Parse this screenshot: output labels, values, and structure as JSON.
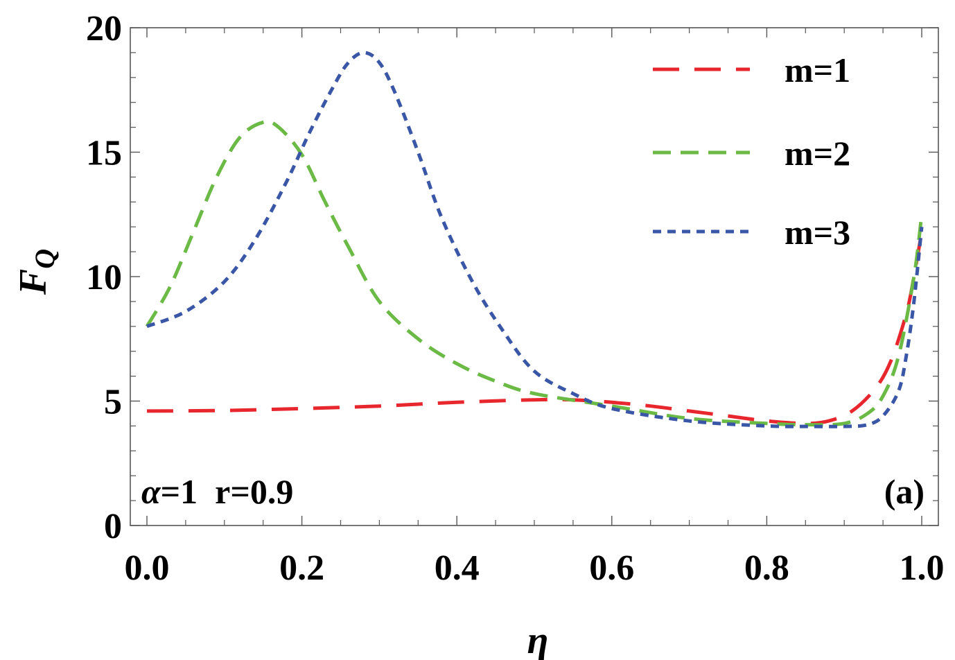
{
  "chart_data": {
    "type": "line",
    "xlabel": "η",
    "ylabel_main": "F",
    "ylabel_sub": "Q",
    "xlim": [
      0,
      1
    ],
    "ylim": [
      0,
      20
    ],
    "xticks": [
      {
        "value": 0.0,
        "label": "0.0"
      },
      {
        "value": 0.2,
        "label": "0.2"
      },
      {
        "value": 0.4,
        "label": "0.4"
      },
      {
        "value": 0.6,
        "label": "0.6"
      },
      {
        "value": 0.8,
        "label": "0.8"
      },
      {
        "value": 1.0,
        "label": "1.0"
      }
    ],
    "yticks": [
      {
        "value": 0,
        "label": "0"
      },
      {
        "value": 5,
        "label": "5"
      },
      {
        "value": 10,
        "label": "10"
      },
      {
        "value": 15,
        "label": "15"
      },
      {
        "value": 20,
        "label": "20"
      }
    ],
    "grid": false,
    "legend_position": "top-right",
    "annotations": {
      "alpha_sym": "α",
      "alpha_eq": "=1  r=0.9",
      "panel": "(a)"
    },
    "series": [
      {
        "name": "m=1",
        "color": "#e8262d",
        "dash": "long",
        "x": [
          0.0,
          0.1,
          0.2,
          0.3,
          0.4,
          0.5,
          0.55,
          0.6,
          0.65,
          0.7,
          0.75,
          0.8,
          0.85,
          0.88,
          0.91,
          0.94,
          0.96,
          0.98,
          0.99,
          1.0
        ],
        "y": [
          4.6,
          4.62,
          4.7,
          4.8,
          4.95,
          5.05,
          5.05,
          4.95,
          4.8,
          4.6,
          4.4,
          4.2,
          4.1,
          4.2,
          4.6,
          5.5,
          6.6,
          8.5,
          10.0,
          11.8
        ]
      },
      {
        "name": "m=2",
        "color": "#6aba45",
        "dash": "medium",
        "x": [
          0.0,
          0.03,
          0.06,
          0.09,
          0.12,
          0.15,
          0.17,
          0.2,
          0.23,
          0.26,
          0.3,
          0.35,
          0.4,
          0.45,
          0.5,
          0.6,
          0.7,
          0.8,
          0.85,
          0.9,
          0.93,
          0.95,
          0.97,
          0.99,
          1.0
        ],
        "y": [
          8.0,
          9.6,
          11.8,
          14.0,
          15.6,
          16.2,
          16.0,
          14.9,
          13.0,
          11.2,
          9.0,
          7.5,
          6.5,
          5.8,
          5.3,
          4.8,
          4.3,
          4.1,
          4.05,
          4.1,
          4.5,
          5.2,
          6.8,
          10.0,
          12.5
        ]
      },
      {
        "name": "m=3",
        "color": "#3a56a6",
        "dash": "short",
        "x": [
          0.0,
          0.05,
          0.1,
          0.14,
          0.18,
          0.21,
          0.24,
          0.26,
          0.28,
          0.3,
          0.32,
          0.35,
          0.38,
          0.42,
          0.46,
          0.5,
          0.55,
          0.6,
          0.7,
          0.8,
          0.85,
          0.9,
          0.93,
          0.95,
          0.97,
          0.98,
          0.99,
          1.0
        ],
        "y": [
          8.0,
          8.6,
          9.8,
          11.5,
          13.8,
          15.8,
          17.6,
          18.6,
          19.0,
          18.6,
          17.4,
          15.0,
          12.4,
          9.8,
          7.8,
          6.2,
          5.3,
          4.7,
          4.2,
          4.0,
          3.98,
          3.98,
          4.05,
          4.4,
          5.4,
          6.8,
          9.0,
          12.0
        ]
      }
    ]
  }
}
